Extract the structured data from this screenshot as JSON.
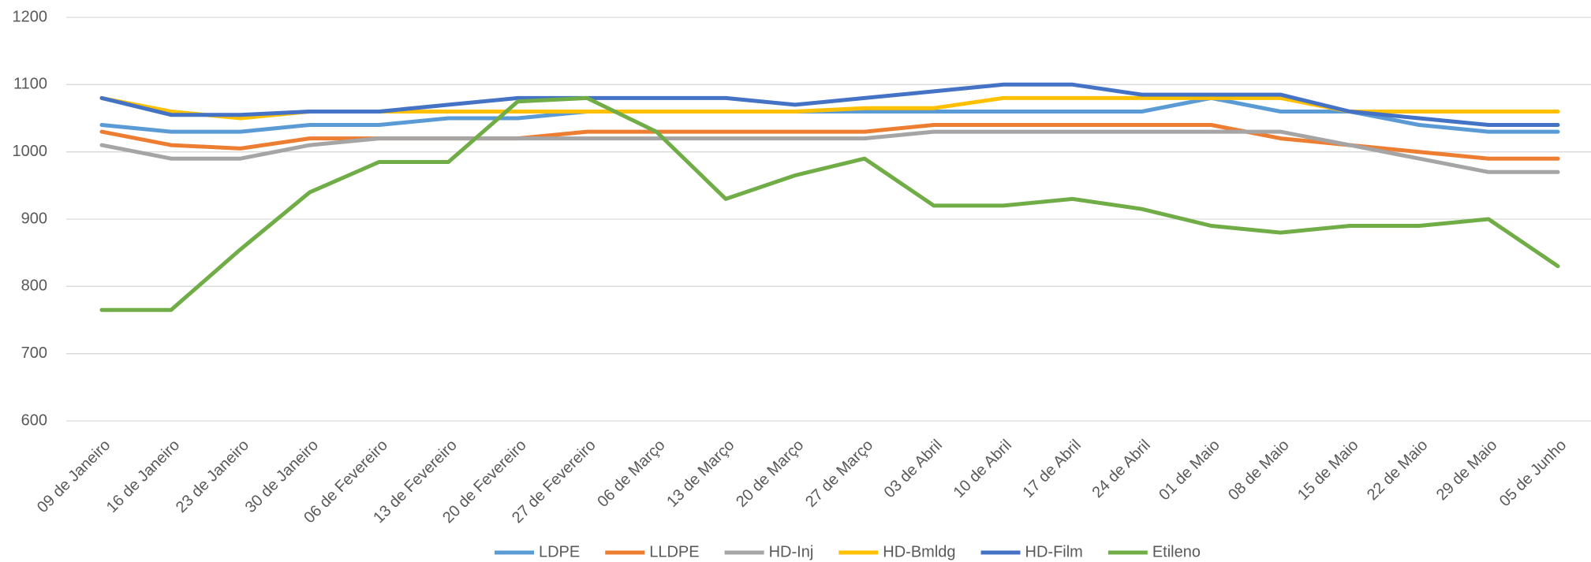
{
  "chart_data": {
    "type": "line",
    "categories": [
      "09 de Janeiro",
      "16 de Janeiro",
      "23 de Janeiro",
      "30 de Janeiro",
      "06 de Fevereiro",
      "13 de Fevereiro",
      "20 de Fevereiro",
      "27 de Fevereiro",
      "06 de Março",
      "13 de Março",
      "20 de Março",
      "27 de Março",
      "03 de Abril",
      "10 de Abril",
      "17 de Abril",
      "24 de Abril",
      "01 de Maio",
      "08 de Maio",
      "15 de Maio",
      "22 de Maio",
      "29 de Maio",
      "05 de Junho"
    ],
    "series": [
      {
        "name": "LDPE",
        "color": "#5b9bd5",
        "values": [
          1040,
          1030,
          1030,
          1040,
          1040,
          1050,
          1050,
          1060,
          1060,
          1060,
          1060,
          1060,
          1060,
          1060,
          1060,
          1060,
          1080,
          1060,
          1060,
          1040,
          1030,
          1030
        ]
      },
      {
        "name": "LLDPE",
        "color": "#ed7d31",
        "values": [
          1030,
          1010,
          1005,
          1020,
          1020,
          1020,
          1020,
          1030,
          1030,
          1030,
          1030,
          1030,
          1040,
          1040,
          1040,
          1040,
          1040,
          1020,
          1010,
          1000,
          990,
          990
        ]
      },
      {
        "name": "HD-Inj",
        "color": "#a5a5a5",
        "values": [
          1010,
          990,
          990,
          1010,
          1020,
          1020,
          1020,
          1020,
          1020,
          1020,
          1020,
          1020,
          1030,
          1030,
          1030,
          1030,
          1030,
          1030,
          1010,
          990,
          970,
          970
        ]
      },
      {
        "name": "HD-Bmldg",
        "color": "#ffc000",
        "values": [
          1080,
          1060,
          1050,
          1060,
          1060,
          1060,
          1060,
          1060,
          1060,
          1060,
          1060,
          1065,
          1065,
          1080,
          1080,
          1080,
          1080,
          1080,
          1060,
          1060,
          1060,
          1060
        ]
      },
      {
        "name": "HD-Film",
        "color": "#4472c4",
        "values": [
          1080,
          1055,
          1055,
          1060,
          1060,
          1070,
          1080,
          1080,
          1080,
          1080,
          1070,
          1080,
          1090,
          1100,
          1100,
          1085,
          1085,
          1085,
          1060,
          1050,
          1040,
          1040
        ]
      },
      {
        "name": "Etileno",
        "color": "#70ad47",
        "values": [
          765,
          765,
          855,
          940,
          985,
          985,
          1075,
          1080,
          1030,
          930,
          965,
          990,
          920,
          920,
          930,
          915,
          890,
          880,
          890,
          890,
          900,
          830
        ]
      }
    ],
    "ylim": [
      600,
      1200
    ],
    "yticks": [
      600,
      700,
      800,
      900,
      1000,
      1100,
      1200
    ],
    "grid": true,
    "legend": "bottom"
  }
}
